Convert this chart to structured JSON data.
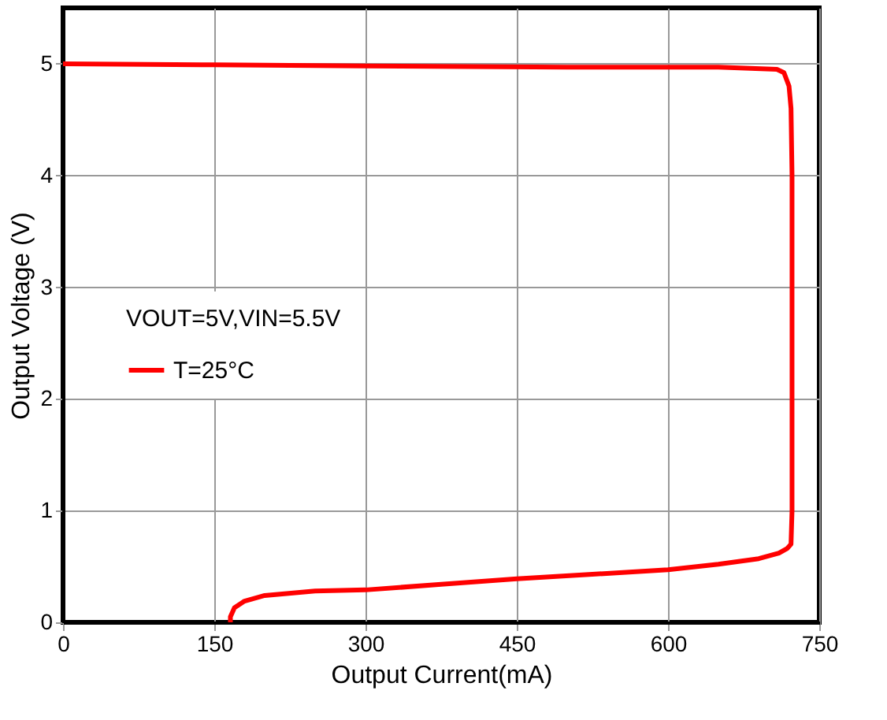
{
  "chart_data": {
    "type": "line",
    "xlabel": "Output Current(mA)",
    "ylabel": "Output Voltage (V)",
    "legend_title": "VOUT=5V,VIN=5.5V",
    "xlim": [
      0,
      750
    ],
    "xticks": [
      0,
      150,
      300,
      450,
      600,
      750
    ],
    "ylim": [
      0,
      5.5
    ],
    "yticks": [
      0,
      1,
      2,
      3,
      4,
      5
    ],
    "grid": true,
    "legend": "left",
    "series": [
      {
        "name": "T=25°C",
        "color": "#ff0000",
        "x": [
          166,
          166,
          170,
          180,
          200,
          250,
          300,
          375,
          450,
          525,
          600,
          650,
          690,
          710,
          718,
          722,
          723,
          723,
          723,
          722,
          720,
          715,
          708,
          650,
          500,
          300,
          150,
          0
        ],
        "values": [
          0,
          0.05,
          0.13,
          0.19,
          0.24,
          0.28,
          0.29,
          0.34,
          0.39,
          0.43,
          0.47,
          0.52,
          0.57,
          0.62,
          0.66,
          0.7,
          1.0,
          2.5,
          4.0,
          4.6,
          4.8,
          4.92,
          4.95,
          4.97,
          4.97,
          4.98,
          4.99,
          5.0
        ]
      }
    ]
  }
}
